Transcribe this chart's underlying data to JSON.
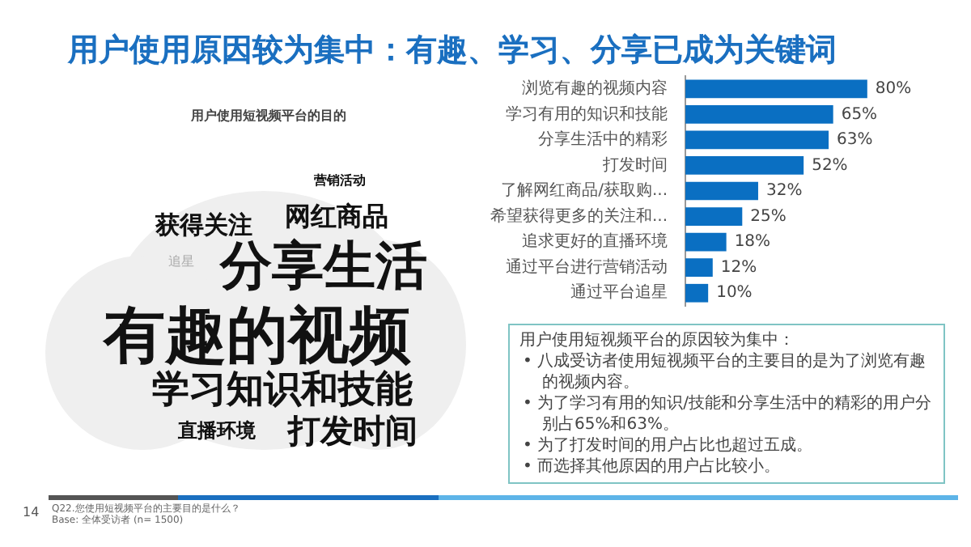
{
  "chart_data": {
    "type": "bar",
    "orientation": "horizontal",
    "title": "用户使用原因较为集中：有趣、学习、分享已成为关键词",
    "categories": [
      "浏览有趣的视频内容",
      "学习有用的知识和技能",
      "分享生活中的精彩",
      "打发时间",
      "了解网红商品/获取购...",
      "希望获得更多的关注和...",
      "追求更好的直播环境",
      "通过平台进行营销活动",
      "通过平台追星"
    ],
    "values": [
      80,
      65,
      63,
      52,
      32,
      25,
      18,
      12,
      10
    ],
    "value_labels": [
      "80%",
      "65%",
      "63%",
      "52%",
      "32%",
      "25%",
      "18%",
      "12%",
      "10%"
    ],
    "color": "#0a6fc2",
    "tick_labels": "y",
    "legend": false,
    "annotations": [
      "用户使用短视频平台的目的",
      "营销活动",
      "获得关注",
      "网红商品",
      "追星",
      "分享生活",
      "有趣的视频",
      "学习知识和技能",
      "直播环境",
      "打发时间",
      "用户使用短视频平台的原因较为集中：",
      "•  八成受访者使用短视频平台的主要目的是为了浏览有趣的视频内容。",
      "•  为了学习有用的知识/技能和分享生活中的精彩的用户分别占65%和63%。",
      "•  为了打发时间的用户占比也超过五成。",
      "•  而选择其他原因的用户占比较小。",
      "14",
      "Q22.您使用短视频平台的主要目的是什么？",
      "Base: 全体受访者 (n= 1500)"
    ]
  }
}
